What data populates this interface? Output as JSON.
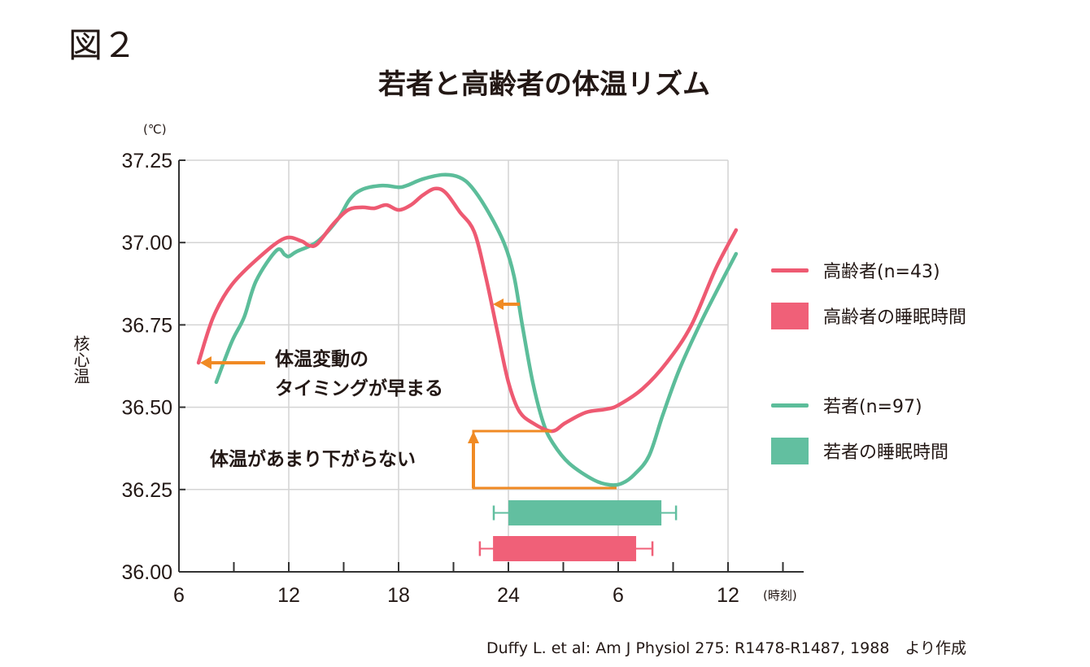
{
  "figure_label": "図２",
  "chart_data": {
    "type": "line",
    "title": "若者と高齢者の体温リズム",
    "ylabel": "核心温",
    "yunit": "(℃)",
    "xunit": "(時刻)",
    "ylim": [
      36.0,
      37.25
    ],
    "yticks": [
      36.0,
      36.25,
      36.5,
      36.75,
      37.0,
      37.25
    ],
    "ytick_labels": [
      "36.00",
      "36.25",
      "36.50",
      "36.75",
      "37.00",
      "37.25"
    ],
    "xlim_hours": [
      6,
      40.3
    ],
    "xticks_hours": [
      6,
      12,
      18,
      24,
      30,
      36
    ],
    "xtick_labels": [
      "6",
      "12",
      "18",
      "24",
      "6",
      "12"
    ],
    "minor_xticks_hours": [
      9,
      15,
      21,
      27,
      33,
      39
    ],
    "grid": true,
    "legend_position": "right",
    "colors": {
      "elderly": "#ee5a72",
      "young": "#5cbd9a",
      "annotation": "#f08a24"
    },
    "series": [
      {
        "name": "高齢者(n=43)",
        "key": "elderly",
        "x": [
          7.07,
          7.87,
          8.89,
          10.44,
          11.78,
          12.67,
          13.11,
          13.56,
          14.44,
          15.24,
          16.0,
          16.67,
          17.33,
          18.0,
          18.67,
          19.33,
          20.0,
          20.58,
          21.33,
          22.13,
          22.76,
          23.42,
          24.0,
          24.58,
          25.33,
          26.36,
          27.11,
          28.22,
          29.33,
          30.0,
          31.33,
          32.67,
          34.0,
          35.33,
          36.44
        ],
        "y": [
          36.635,
          36.773,
          36.872,
          36.958,
          37.013,
          37.005,
          36.991,
          36.996,
          37.057,
          37.099,
          37.107,
          37.104,
          37.114,
          37.099,
          37.114,
          37.144,
          37.164,
          37.151,
          37.094,
          37.033,
          36.897,
          36.724,
          36.576,
          36.489,
          36.452,
          36.427,
          36.452,
          36.484,
          36.494,
          36.506,
          36.556,
          36.637,
          36.749,
          36.921,
          37.038
        ]
      },
      {
        "name": "若者(n=97)",
        "key": "young",
        "x": [
          8.04,
          8.89,
          9.56,
          10.22,
          11.33,
          11.78,
          12.0,
          12.44,
          13.56,
          14.67,
          15.33,
          16.0,
          17.11,
          18.0,
          18.44,
          19.33,
          20.44,
          21.33,
          22.0,
          22.89,
          23.78,
          24.31,
          24.76,
          25.33,
          25.91,
          26.44,
          27.33,
          28.67,
          29.56,
          30.22,
          30.89,
          31.69,
          32.44,
          33.33,
          34.44,
          35.56,
          36.44
        ],
        "y": [
          36.576,
          36.699,
          36.773,
          36.884,
          36.976,
          36.963,
          36.958,
          36.973,
          37.003,
          37.07,
          37.131,
          37.161,
          37.173,
          37.168,
          37.173,
          37.193,
          37.206,
          37.198,
          37.168,
          37.094,
          36.996,
          36.897,
          36.749,
          36.576,
          36.452,
          36.39,
          36.329,
          36.279,
          36.264,
          36.269,
          36.296,
          36.353,
          36.477,
          36.613,
          36.749,
          36.872,
          36.966
        ]
      }
    ],
    "sleep_bars": [
      {
        "name": "若者の睡眠時間",
        "key": "young",
        "start": 24.0,
        "end": 32.36,
        "err_low": 23.2,
        "err_high": 33.16
      },
      {
        "name": "高齢者の睡眠時間",
        "key": "elderly",
        "start": 23.16,
        "end": 30.98,
        "err_low": 22.44,
        "err_high": 31.87
      }
    ],
    "annotations": [
      {
        "text_line1": "体温変動の",
        "text_line2": "タイミングが早まる"
      },
      {
        "text": "体温があまり下がらない"
      }
    ]
  },
  "legend": [
    {
      "label": "高齢者(n=43)",
      "kind": "line",
      "key": "elderly"
    },
    {
      "label": "高齢者の睡眠時間",
      "kind": "box",
      "key": "elderly"
    },
    {
      "label": "若者(n=97)",
      "kind": "line",
      "key": "young"
    },
    {
      "label": "若者の睡眠時間",
      "kind": "box",
      "key": "young"
    }
  ],
  "source": "Duffy L. et al: Am J Physiol 275: R1478-R1487, 1988　より作成"
}
